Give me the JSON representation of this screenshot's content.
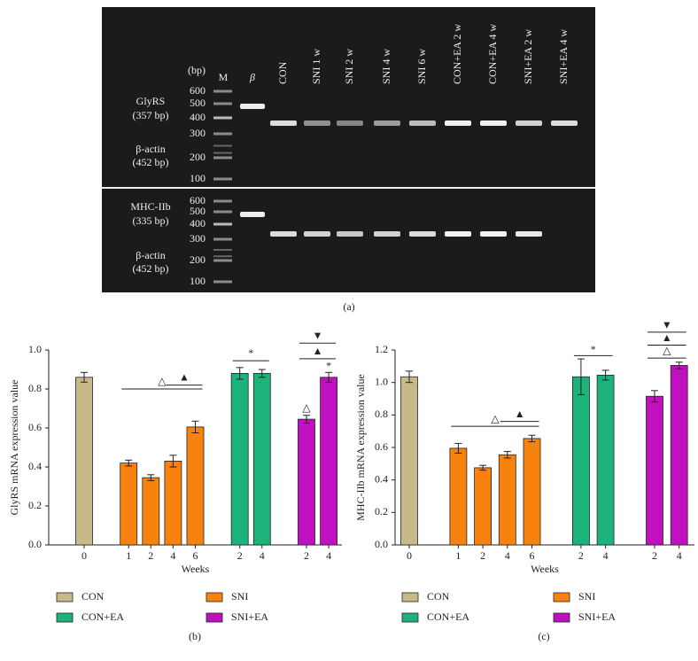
{
  "gel": {
    "bp_header": "(bp)",
    "lanes": [
      "M",
      "β",
      "CON",
      "SNI 1 w",
      "SNI 2 w",
      "SNI 4 w",
      "SNI 6 w",
      "CON+EA 2 w",
      "CON+EA 4 w",
      "SNI+EA 2 w",
      "SNI+EA 4 w"
    ],
    "top": {
      "target": "GlyRS",
      "target_size": "(357 bp)",
      "reference": "β-actin",
      "reference_size": "(452 bp)",
      "markers": [
        600,
        500,
        400,
        300,
        200,
        100
      ]
    },
    "bottom": {
      "target": "MHC-IIb",
      "target_size": "(335 bp)",
      "reference": "β-actin",
      "reference_size": "(452 bp)",
      "markers": [
        600,
        500,
        400,
        300,
        200,
        100
      ]
    },
    "panel_label": "(a)"
  },
  "chart_data": [
    {
      "type": "bar",
      "panel_label": "(b)",
      "ylabel": "GlyRS mRNA expression value",
      "xlabel": "Weeks",
      "categories": [
        "0",
        null,
        "1",
        "2",
        "4",
        "6",
        null,
        "2",
        "4",
        null,
        "2",
        "4"
      ],
      "series": [
        {
          "name": "CON",
          "color": "#c8b98a",
          "values": [
            0.86,
            null,
            null,
            null,
            null,
            null,
            null,
            null,
            null,
            null,
            null,
            null
          ],
          "errors": [
            0.025,
            null,
            null,
            null,
            null,
            null,
            null,
            null,
            null,
            null,
            null,
            null
          ]
        },
        {
          "name": "SNI",
          "color": "#f7820f",
          "values": [
            null,
            null,
            0.42,
            0.345,
            0.43,
            0.605,
            null,
            null,
            null,
            null,
            null,
            null
          ],
          "errors": [
            null,
            null,
            0.015,
            0.015,
            0.03,
            0.03,
            null,
            null,
            null,
            null,
            null,
            null
          ]
        },
        {
          "name": "CON+EA",
          "color": "#1bb37a",
          "values": [
            null,
            null,
            null,
            null,
            null,
            null,
            null,
            0.88,
            0.88,
            null,
            null,
            null
          ],
          "errors": [
            null,
            null,
            null,
            null,
            null,
            null,
            null,
            0.03,
            0.02,
            null,
            null,
            null
          ]
        },
        {
          "name": "SNI+EA",
          "color": "#c011c0",
          "values": [
            null,
            null,
            null,
            null,
            null,
            null,
            null,
            null,
            null,
            null,
            0.645,
            0.86
          ],
          "errors": [
            null,
            null,
            null,
            null,
            null,
            null,
            null,
            null,
            null,
            null,
            0.02,
            0.025
          ]
        }
      ],
      "ylim": [
        0,
        1
      ],
      "yticks": [
        {
          "value": 0,
          "label": "0.0"
        },
        0.2,
        0.4,
        0.6,
        0.8,
        {
          "value": 1,
          "label": "1.0"
        }
      ],
      "annotations": [
        "△",
        "▲",
        "*",
        "△",
        "*",
        "▲",
        "▼"
      ]
    },
    {
      "type": "bar",
      "panel_label": "(c)",
      "ylabel": "MHC-IIb mRNA expression value",
      "xlabel": "Weeks",
      "categories": [
        "0",
        null,
        "1",
        "2",
        "4",
        "6",
        null,
        "2",
        "4",
        null,
        "2",
        "4"
      ],
      "series": [
        {
          "name": "CON",
          "color": "#c8b98a",
          "values": [
            1.035,
            null,
            null,
            null,
            null,
            null,
            null,
            null,
            null,
            null,
            null,
            null
          ],
          "errors": [
            0.035,
            null,
            null,
            null,
            null,
            null,
            null,
            null,
            null,
            null,
            null,
            null
          ]
        },
        {
          "name": "SNI",
          "color": "#f7820f",
          "values": [
            null,
            null,
            0.595,
            0.475,
            0.555,
            0.655,
            null,
            null,
            null,
            null,
            null,
            null
          ],
          "errors": [
            null,
            null,
            0.03,
            0.015,
            0.02,
            0.02,
            null,
            null,
            null,
            null,
            null,
            null
          ]
        },
        {
          "name": "CON+EA",
          "color": "#1bb37a",
          "values": [
            null,
            null,
            null,
            null,
            null,
            null,
            null,
            1.035,
            1.045,
            null,
            null,
            null
          ],
          "errors": [
            null,
            null,
            null,
            null,
            null,
            null,
            null,
            0.11,
            0.03,
            null,
            null,
            null
          ]
        },
        {
          "name": "SNI+EA",
          "color": "#c011c0",
          "values": [
            null,
            null,
            null,
            null,
            null,
            null,
            null,
            null,
            null,
            null,
            0.915,
            1.105
          ],
          "errors": [
            null,
            null,
            null,
            null,
            null,
            null,
            null,
            null,
            null,
            null,
            0.035,
            0.02
          ]
        }
      ],
      "ylim": [
        0,
        1.2
      ],
      "yticks": [
        {
          "value": 0,
          "label": "0.0"
        },
        0.2,
        0.4,
        0.6,
        0.8,
        {
          "value": 1,
          "label": "1.0"
        },
        1.2
      ],
      "annotations": [
        "△",
        "▲",
        "*",
        "△",
        "▲",
        "▼"
      ]
    }
  ]
}
